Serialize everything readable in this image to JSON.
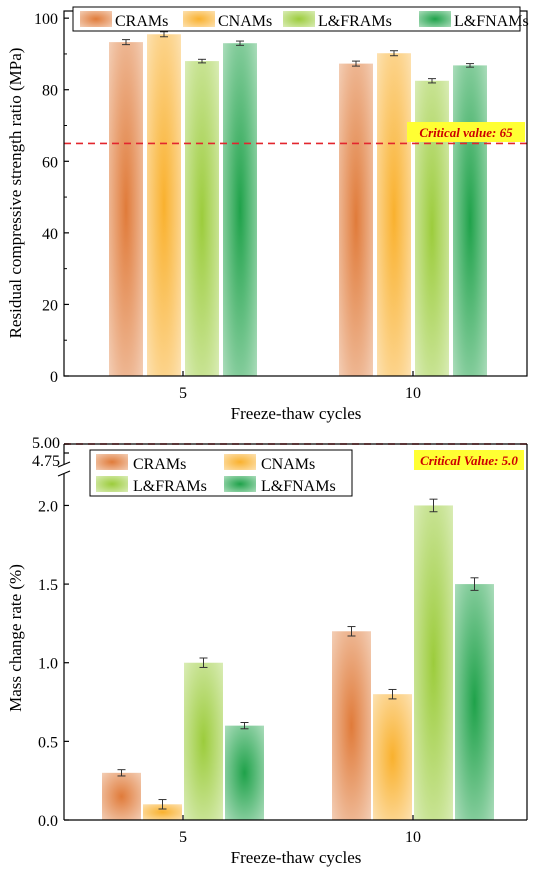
{
  "chart_data": [
    {
      "type": "bar",
      "xlabel": "Freeze-thaw cycles",
      "ylabel": "Residual compressive strength ratio (MPa)",
      "categories": [
        "5",
        "10"
      ],
      "ylim": [
        0,
        102
      ],
      "yticks": [
        0,
        20,
        40,
        60,
        80,
        100
      ],
      "legend_position": "top",
      "series": [
        {
          "name": "CRAMs",
          "values": [
            93.3,
            87.3
          ],
          "errors": [
            0.7,
            0.7
          ],
          "color": "#e07b3a"
        },
        {
          "name": "CNAMs",
          "values": [
            95.5,
            90.2
          ],
          "errors": [
            0.7,
            0.7
          ],
          "color": "#f9b12e"
        },
        {
          "name": "L&FRAMs",
          "values": [
            88.0,
            82.5
          ],
          "errors": [
            0.5,
            0.6
          ],
          "color": "#9ccc3c"
        },
        {
          "name": "L&FNAMs",
          "values": [
            93.0,
            86.8
          ],
          "errors": [
            0.6,
            0.5
          ],
          "color": "#1fa24a"
        }
      ],
      "reference_line": {
        "value": 65,
        "label": "Critical value: 65",
        "color": "#e3262e"
      }
    },
    {
      "type": "bar",
      "xlabel": "Freeze-thaw cycles",
      "ylabel": "Mass change rate (%)",
      "categories": [
        "5",
        "10"
      ],
      "ylim": [
        0,
        2.2
      ],
      "yticks": [
        "0.0",
        "0.5",
        "1.0",
        "1.5",
        "2.0"
      ],
      "broken_axis_ticks": [
        "4.75",
        "5.00"
      ],
      "legend_position": "top-left",
      "series": [
        {
          "name": "CRAMs",
          "values": [
            0.3,
            1.2
          ],
          "errors": [
            0.02,
            0.03
          ],
          "color": "#e07b3a"
        },
        {
          "name": "CNAMs",
          "values": [
            0.1,
            0.8
          ],
          "errors": [
            0.03,
            0.03
          ],
          "color": "#f9b12e"
        },
        {
          "name": "L&FRAMs",
          "values": [
            1.0,
            2.0
          ],
          "errors": [
            0.03,
            0.04
          ],
          "color": "#9ccc3c"
        },
        {
          "name": "L&FNAMs",
          "values": [
            0.6,
            1.5
          ],
          "errors": [
            0.02,
            0.04
          ],
          "color": "#1fa24a"
        }
      ],
      "reference_line": {
        "value": 5.0,
        "label": "Critical Value: 5.0",
        "color": "#e3262e"
      }
    }
  ]
}
